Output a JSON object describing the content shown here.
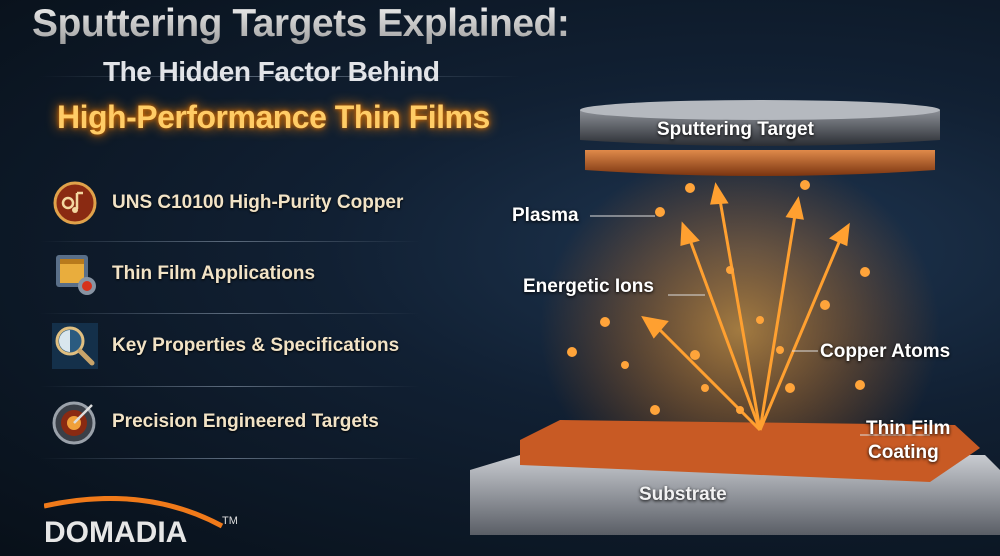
{
  "title": {
    "line1": "Sputtering Targets Explained:",
    "line2": "The Hidden Factor Behind",
    "line3": "High-Performance Thin Films"
  },
  "features": [
    {
      "label": "UNS C10100 High-Purity Copper",
      "icon": "copper-medal-icon"
    },
    {
      "label": "Thin Film Applications",
      "icon": "chip-gear-icon"
    },
    {
      "label": "Key Properties & Specifications",
      "icon": "magnifier-icon"
    },
    {
      "label": "Precision Engineered Targets",
      "icon": "target-dart-icon"
    }
  ],
  "logo": {
    "text": "DOMADIA",
    "tm": "TM"
  },
  "diagram": {
    "target": "Sputtering Target",
    "plasma": "Plasma",
    "ions": "Energetic Ions",
    "atoms": "Copper Atoms",
    "film_line1": "Thin Film",
    "film_line2": "Coating",
    "substrate": "Substrate"
  },
  "colors": {
    "accent": "#ff9a2e",
    "title_highlight": "#ffcc66",
    "background": "#0b1420"
  }
}
